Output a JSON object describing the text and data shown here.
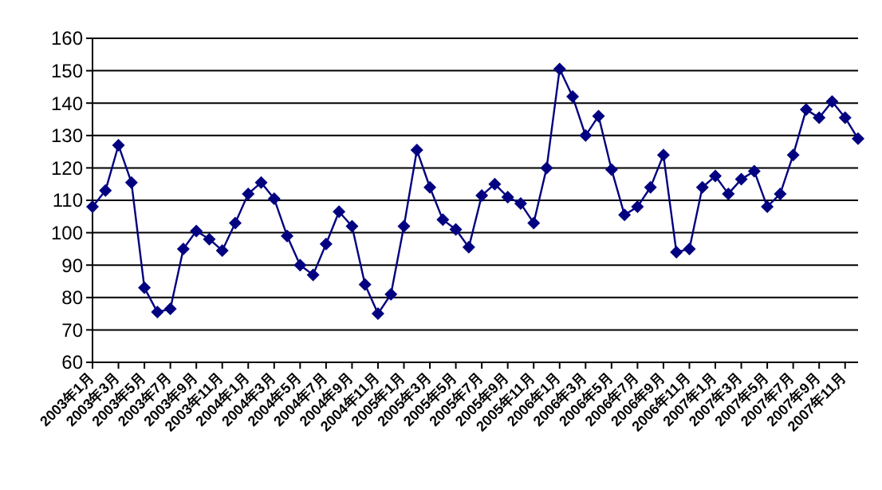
{
  "chart_data": {
    "type": "line",
    "categories": [
      "2003年1月",
      null,
      "2003年3月",
      null,
      "2003年5月",
      null,
      "2003年7月",
      null,
      "2003年9月",
      null,
      "2003年11月",
      null,
      "2004年1月",
      null,
      "2004年3月",
      null,
      "2004年5月",
      null,
      "2004年7月",
      null,
      "2004年9月",
      null,
      "2004年11月",
      null,
      "2005年1月",
      null,
      "2005年3月",
      null,
      "2005年5月",
      null,
      "2005年7月",
      null,
      "2005年9月",
      null,
      "2005年11月",
      null,
      "2006年1月",
      null,
      "2006年3月",
      null,
      "2006年5月",
      null,
      "2006年7月",
      null,
      "2006年9月",
      null,
      "2006年11月",
      null,
      "2007年1月",
      null,
      "2007年3月",
      null,
      "2007年5月",
      null,
      "2007年7月",
      null,
      "2007年9月",
      null,
      "2007年11月",
      null
    ],
    "series": [
      {
        "color": "#000080",
        "values": [
          108,
          113,
          127,
          115.5,
          83,
          75.5,
          76.5,
          95,
          100.5,
          98,
          94.5,
          103,
          112,
          115.5,
          110.5,
          99,
          90,
          87,
          96.5,
          106.5,
          102,
          84,
          75,
          81,
          102,
          125.5,
          114,
          104,
          101,
          95.5,
          111.5,
          115,
          111,
          109,
          103,
          120,
          150.5,
          142,
          130,
          136,
          119.5,
          105.5,
          108,
          114,
          124,
          94,
          95,
          114,
          117.5,
          112,
          116.5,
          119,
          108,
          112,
          124,
          138,
          135.5,
          140.5,
          135.5,
          129
        ]
      }
    ],
    "ylim": [
      60,
      160
    ],
    "yticks": [
      60,
      70,
      80,
      90,
      100,
      110,
      120,
      130,
      140,
      150,
      160
    ],
    "grid": "y",
    "marker": "diamond",
    "line_style": "solid"
  }
}
